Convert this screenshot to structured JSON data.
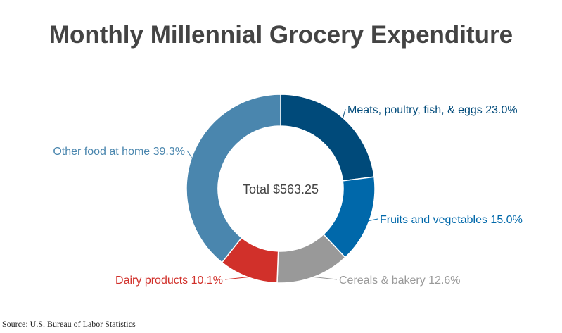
{
  "chart_data": {
    "type": "pie",
    "title": "Monthly Millennial Grocery Expenditure",
    "center_label": "Total $563.25",
    "source": "Source: U.S. Bureau of Labor Statistics",
    "slices": [
      {
        "label": "Meats, poultry, fish, & eggs 23.0%",
        "name": "Meats, poultry, fish, & eggs",
        "value": 23.0,
        "color": "#004a7a"
      },
      {
        "label": "Fruits and vegetables 15.0%",
        "name": "Fruits and vegetables",
        "value": 15.0,
        "color": "#0068aa"
      },
      {
        "label": "Cereals & bakery 12.6%",
        "name": "Cereals & bakery",
        "value": 12.6,
        "color": "#999999"
      },
      {
        "label": "Dairy products 10.1%",
        "name": "Dairy products",
        "value": 10.1,
        "color": "#d1302a"
      },
      {
        "label": "Other food at home 39.3%",
        "name": "Other food at home",
        "value": 39.3,
        "color": "#4a86ae"
      }
    ]
  }
}
